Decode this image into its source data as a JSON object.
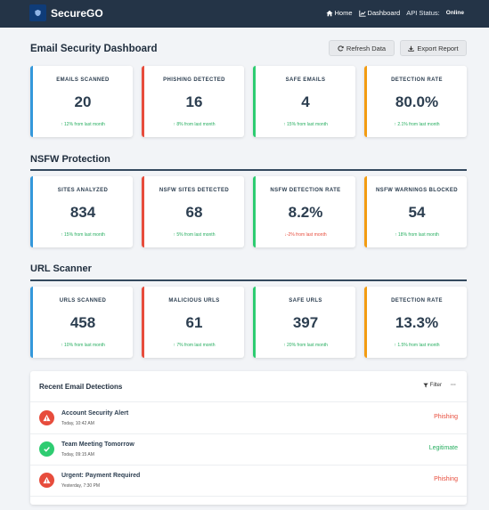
{
  "navbar": {
    "brand": "SecureGO",
    "links": [
      {
        "label": "Home"
      },
      {
        "label": "Dashboard"
      }
    ],
    "api_label": "API Status:",
    "api_value": "Online"
  },
  "header": {
    "title": "Email Security Dashboard",
    "refresh_label": "Refresh Data",
    "export_label": "Export Report"
  },
  "email_cards": [
    {
      "label": "EMAILS SCANNED",
      "value": "20",
      "trend": "12% from last month",
      "direction": "up",
      "accent": "#3498db"
    },
    {
      "label": "PHISHING DETECTED",
      "value": "16",
      "trend": "8% from last month",
      "direction": "up",
      "accent": "#e74c3c"
    },
    {
      "label": "SAFE EMAILS",
      "value": "4",
      "trend": "15% from last month",
      "direction": "up",
      "accent": "#2ecc71"
    },
    {
      "label": "DETECTION RATE",
      "value": "80.0%",
      "trend": "2.1% from last month",
      "direction": "up",
      "accent": "#f39c12"
    }
  ],
  "nsfw": {
    "title": "NSFW Protection",
    "cards": [
      {
        "label": "SITES ANALYZED",
        "value": "834",
        "trend": "15% from last month",
        "direction": "up",
        "accent": "#3498db"
      },
      {
        "label": "NSFW SITES DETECTED",
        "value": "68",
        "trend": "5% from last month",
        "direction": "up",
        "accent": "#e74c3c"
      },
      {
        "label": "NSFW DETECTION RATE",
        "value": "8.2%",
        "trend": "-2% from last month",
        "direction": "down",
        "accent": "#2ecc71"
      },
      {
        "label": "NSFW WARNINGS BLOCKED",
        "value": "54",
        "trend": "18% from last month",
        "direction": "up",
        "accent": "#f39c12"
      }
    ]
  },
  "url": {
    "title": "URL Scanner",
    "cards": [
      {
        "label": "URLS SCANNED",
        "value": "458",
        "trend": "10% from last month",
        "direction": "up",
        "accent": "#3498db"
      },
      {
        "label": "MALICIOUS URLS",
        "value": "61",
        "trend": "7% from last month",
        "direction": "up",
        "accent": "#e74c3c"
      },
      {
        "label": "SAFE URLS",
        "value": "397",
        "trend": "20% from last month",
        "direction": "up",
        "accent": "#2ecc71"
      },
      {
        "label": "DETECTION RATE",
        "value": "13.3%",
        "trend": "1.5% from last month",
        "direction": "up",
        "accent": "#f39c12"
      }
    ]
  },
  "detections": {
    "title": "Recent Email Detections",
    "filter_label": "Filter",
    "more_label": "···",
    "rows": [
      {
        "title": "Account Security Alert",
        "time": "Today, 10:42 AM",
        "status": "Phishing",
        "kind": "warning",
        "color": "#e74c3c"
      },
      {
        "title": "Team Meeting Tomorrow",
        "time": "Today, 09:15 AM",
        "status": "Legitimate",
        "kind": "check",
        "color": "#27ae60"
      },
      {
        "title": "Urgent: Payment Required",
        "time": "Yesterday, 7:30 PM",
        "status": "Phishing",
        "kind": "warning",
        "color": "#e74c3c"
      }
    ]
  }
}
